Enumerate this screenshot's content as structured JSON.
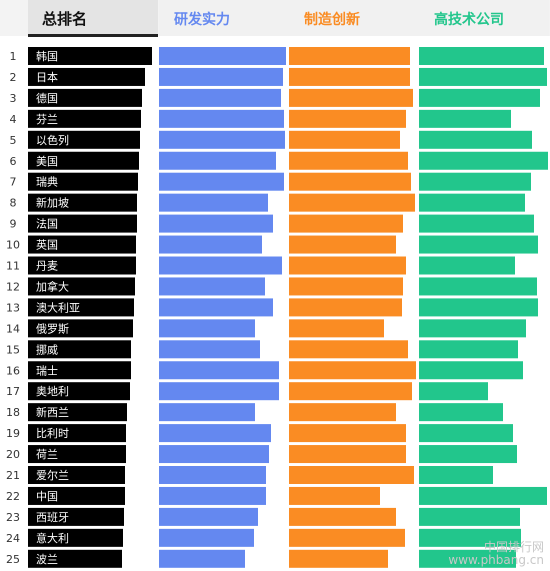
{
  "watermark": {
    "line1": "中国排行网",
    "line2": "www.phbang.cn"
  },
  "chart_data": {
    "type": "bar",
    "headers": [
      "总排名",
      "研发实力",
      "制造创新",
      "高技术公司"
    ],
    "ranks": [
      "1",
      "2",
      "3",
      "4",
      "5",
      "6",
      "7",
      "8",
      "9",
      "10",
      "11",
      "12",
      "13",
      "14",
      "15",
      "16",
      "17",
      "18",
      "19",
      "20",
      "21",
      "22",
      "23",
      "24",
      "25"
    ],
    "countries": [
      "韩国",
      "日本",
      "德国",
      "芬兰",
      "以色列",
      "美国",
      "瑞典",
      "新加坡",
      "法国",
      "英国",
      "丹麦",
      "加拿大",
      "澳大利亚",
      "俄罗斯",
      "挪威",
      "瑞士",
      "奥地利",
      "新西兰",
      "比利时",
      "荷兰",
      "爱尔兰",
      "中国",
      "西班牙",
      "意大利",
      "波兰"
    ],
    "series": [
      {
        "name": "总排名",
        "color": "#000000",
        "values": [
          124,
          117,
          114,
          113,
          112,
          111,
          110,
          109,
          109,
          108,
          108,
          107,
          106,
          105,
          103,
          103,
          102,
          99,
          98,
          98,
          97,
          97,
          96,
          95,
          94
        ]
      },
      {
        "name": "研发实力",
        "color": "#6488f0",
        "values": [
          127,
          124,
          122,
          125,
          126,
          117,
          125,
          109,
          114,
          103,
          123,
          106,
          114,
          96,
          101,
          120,
          120,
          96,
          112,
          110,
          107,
          107,
          99,
          95,
          86
        ]
      },
      {
        "name": "制造创新",
        "color": "#fa8c23",
        "values": [
          121,
          121,
          124,
          117,
          111,
          119,
          122,
          126,
          114,
          107,
          117,
          114,
          113,
          95,
          119,
          127,
          123,
          107,
          117,
          117,
          125,
          91,
          107,
          116,
          99
        ]
      },
      {
        "name": "高技术公司",
        "color": "#22c68c",
        "values": [
          125,
          128,
          121,
          92,
          113,
          129,
          112,
          106,
          115,
          119,
          96,
          118,
          119,
          107,
          99,
          104,
          69,
          84,
          94,
          98,
          74,
          128,
          101,
          102,
          97
        ]
      }
    ]
  }
}
